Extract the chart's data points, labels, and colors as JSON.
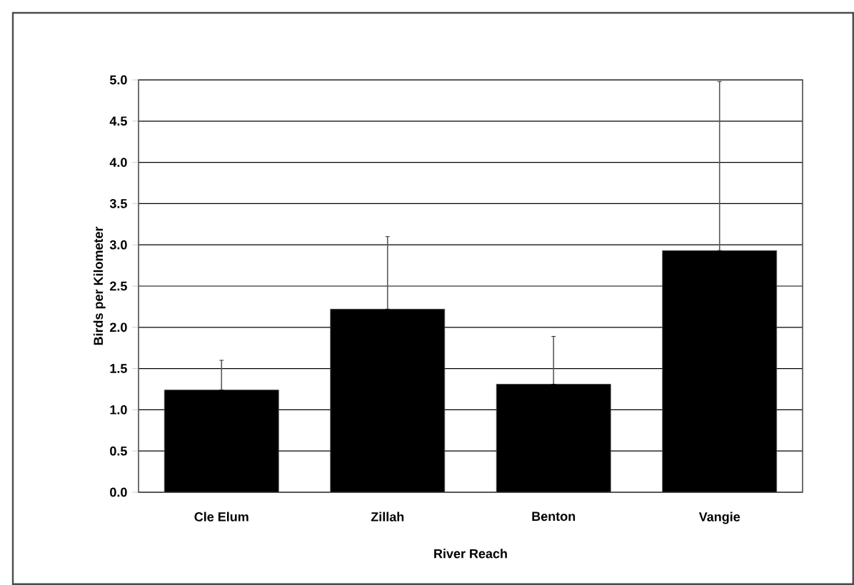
{
  "chart_data": {
    "type": "bar",
    "xlabel": "River Reach",
    "ylabel": "Birds per Kilometer",
    "categories": [
      "Cle Elum",
      "Zillah",
      "Benton",
      "Vangie"
    ],
    "values": [
      1.24,
      2.22,
      1.31,
      2.93
    ],
    "errors": [
      [
        1.24,
        1.6
      ],
      [
        2.22,
        3.1
      ],
      [
        1.31,
        1.89
      ],
      [
        2.93,
        4.98
      ]
    ],
    "color": "#000000",
    "ylim": [
      0,
      5
    ],
    "yticks": [
      {
        "value": 0,
        "label": "0.0"
      },
      {
        "value": 0.5,
        "label": "0.5"
      },
      {
        "value": 1,
        "label": "1.0"
      },
      {
        "value": 1.5,
        "label": "1.5"
      },
      {
        "value": 2,
        "label": "2.0"
      },
      {
        "value": 2.5,
        "label": "2.5"
      },
      {
        "value": 3,
        "label": "3.0"
      },
      {
        "value": 3.5,
        "label": "3.5"
      },
      {
        "value": 4,
        "label": "4.0"
      },
      {
        "value": 4.5,
        "label": "4.5"
      },
      {
        "value": 5,
        "label": "5.0"
      }
    ],
    "grid": "y"
  }
}
